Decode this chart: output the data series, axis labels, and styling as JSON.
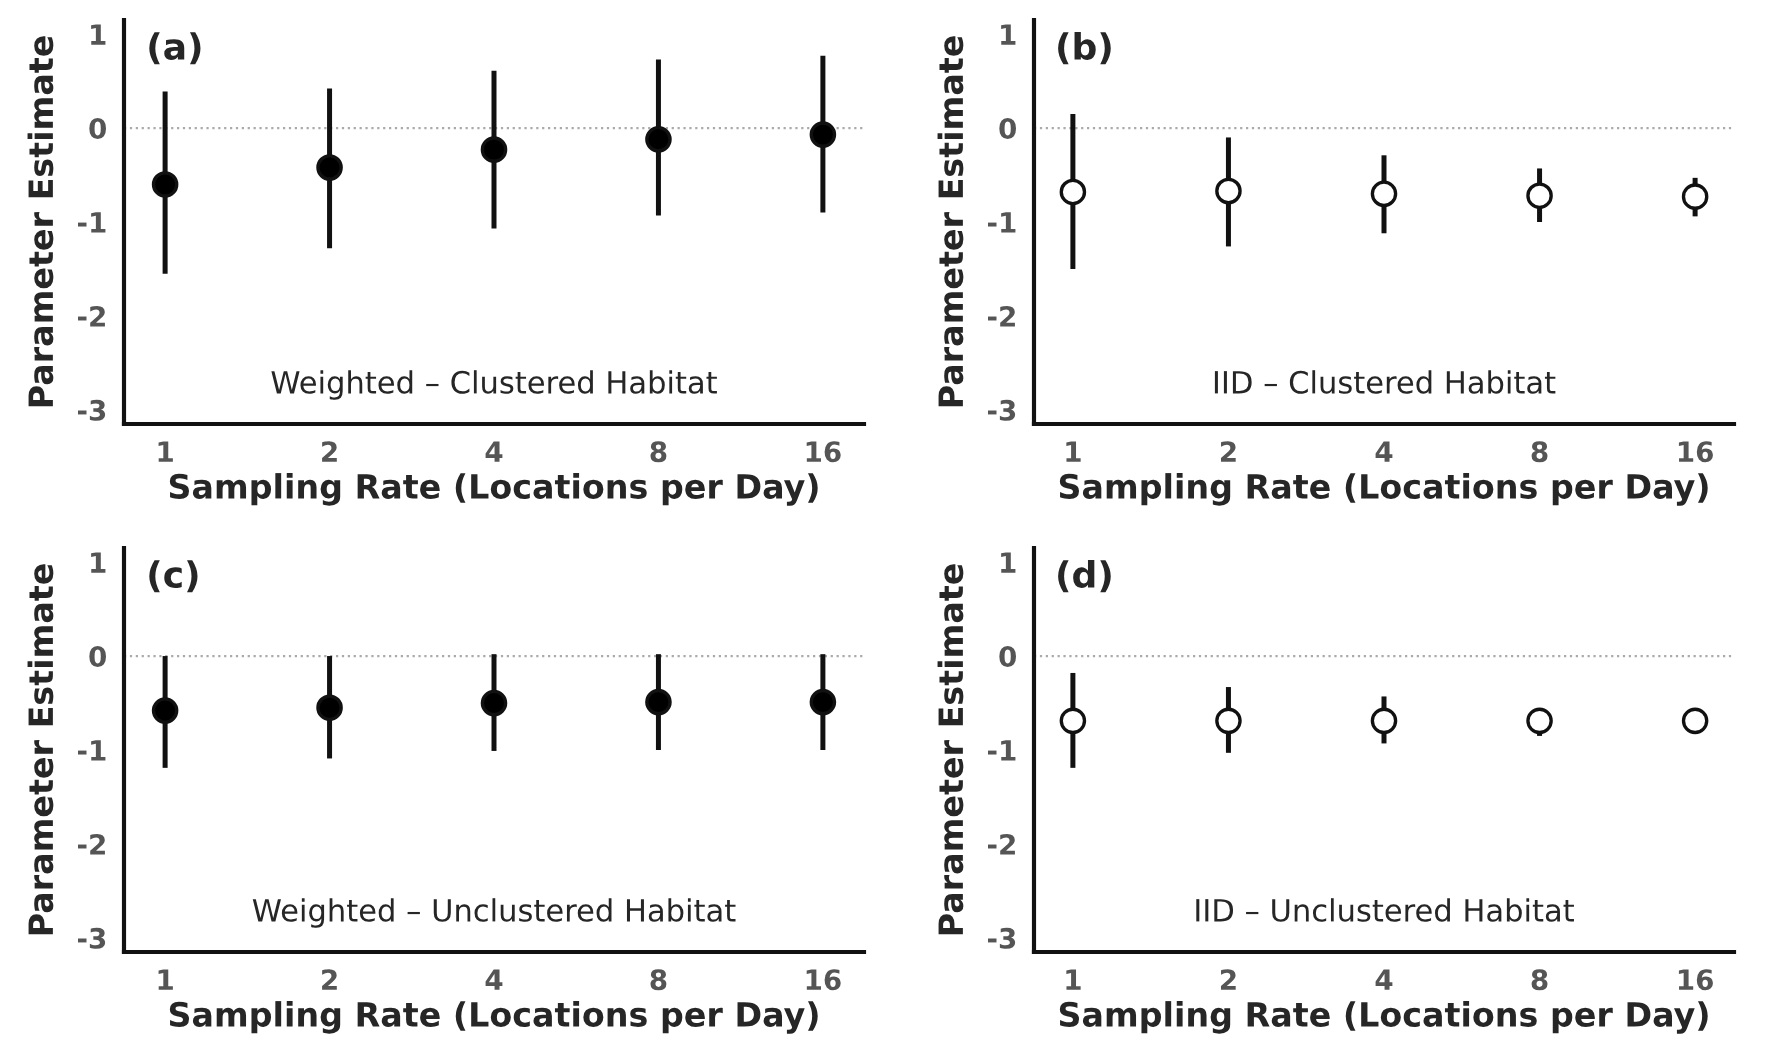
{
  "chart_data": [
    {
      "type": "scatter",
      "xlabel": "Sampling Rate (Locations per Day)",
      "ylabel": "Parameter Estimate",
      "categories": [
        "1",
        "2",
        "4",
        "8",
        "16"
      ],
      "annotations": [
        "(a)",
        "Weighted – Clustered Habitat"
      ],
      "ylim": [
        -3.15,
        1.15
      ],
      "yticks": [
        -3,
        -2,
        -1,
        0,
        1
      ],
      "grid": false,
      "legend": false,
      "marker": "circle",
      "ref_lines": [
        {
          "axis": "y",
          "value": 0,
          "color": "#aaaaaa",
          "line_style": "dotted"
        }
      ],
      "series": [
        {
          "color": "#000000",
          "values": [
            -0.6,
            -0.42,
            -0.23,
            -0.12,
            -0.07
          ],
          "errors": [
            [
              -1.55,
              0.39
            ],
            [
              -1.28,
              0.42
            ],
            [
              -1.07,
              0.61
            ],
            [
              -0.93,
              0.73
            ],
            [
              -0.9,
              0.77
            ]
          ]
        }
      ]
    },
    {
      "type": "scatter",
      "xlabel": "Sampling Rate (Locations per Day)",
      "ylabel": "Parameter Estimate",
      "categories": [
        "1",
        "2",
        "4",
        "8",
        "16"
      ],
      "annotations": [
        "(b)",
        "IID – Clustered Habitat"
      ],
      "ylim": [
        -3.15,
        1.15
      ],
      "yticks": [
        -3,
        -2,
        -1,
        0,
        1
      ],
      "grid": false,
      "legend": false,
      "marker": "circle",
      "ref_lines": [
        {
          "axis": "y",
          "value": 0,
          "color": "#aaaaaa",
          "line_style": "dotted"
        }
      ],
      "series": [
        {
          "color": "#ffffff",
          "values": [
            -0.68,
            -0.67,
            -0.7,
            -0.72,
            -0.73
          ],
          "errors": [
            [
              -1.5,
              0.15
            ],
            [
              -1.26,
              -0.1
            ],
            [
              -1.12,
              -0.29
            ],
            [
              -1.0,
              -0.43
            ],
            [
              -0.94,
              -0.53
            ]
          ]
        }
      ]
    },
    {
      "type": "scatter",
      "xlabel": "Sampling Rate (Locations per Day)",
      "ylabel": "Parameter Estimate",
      "categories": [
        "1",
        "2",
        "4",
        "8",
        "16"
      ],
      "annotations": [
        "(c)",
        "Weighted – Unclustered Habitat"
      ],
      "ylim": [
        -3.15,
        1.15
      ],
      "yticks": [
        -3,
        -2,
        -1,
        0,
        1
      ],
      "grid": false,
      "legend": false,
      "marker": "circle",
      "ref_lines": [
        {
          "axis": "y",
          "value": 0,
          "color": "#aaaaaa",
          "line_style": "dotted"
        }
      ],
      "series": [
        {
          "color": "#000000",
          "values": [
            -0.58,
            -0.55,
            -0.5,
            -0.49,
            -0.49
          ],
          "errors": [
            [
              -1.19,
              0.0
            ],
            [
              -1.09,
              0.0
            ],
            [
              -1.01,
              0.02
            ],
            [
              -1.0,
              0.02
            ],
            [
              -1.0,
              0.02
            ]
          ]
        }
      ]
    },
    {
      "type": "scatter",
      "xlabel": "Sampling Rate (Locations per Day)",
      "ylabel": "Parameter Estimate",
      "categories": [
        "1",
        "2",
        "4",
        "8",
        "16"
      ],
      "annotations": [
        "(d)",
        "IID – Unclustered Habitat"
      ],
      "ylim": [
        -3.15,
        1.15
      ],
      "yticks": [
        -3,
        -2,
        -1,
        0,
        1
      ],
      "grid": false,
      "legend": false,
      "marker": "circle",
      "ref_lines": [
        {
          "axis": "y",
          "value": 0,
          "color": "#aaaaaa",
          "line_style": "dotted"
        }
      ],
      "series": [
        {
          "color": "#ffffff",
          "values": [
            -0.69,
            -0.69,
            -0.69,
            -0.69,
            -0.69
          ],
          "errors": [
            [
              -1.19,
              -0.18
            ],
            [
              -1.03,
              -0.33
            ],
            [
              -0.93,
              -0.43
            ],
            [
              -0.85,
              -0.56
            ],
            null
          ]
        }
      ]
    }
  ]
}
